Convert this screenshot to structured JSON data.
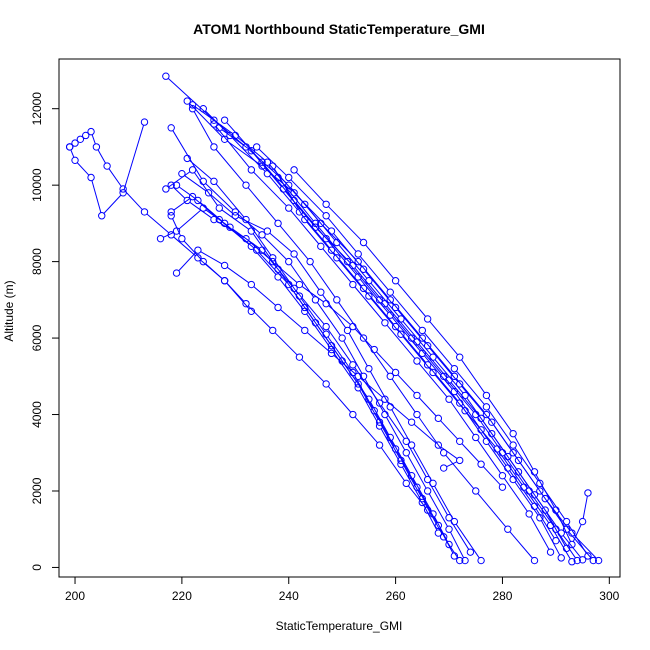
{
  "chart_data": {
    "type": "line",
    "title": "ATOM1 Northbound StaticTemperature_GMI",
    "xlabel": "StaticTemperature_GMI",
    "ylabel": "Altitude (m)",
    "xlim": [
      197,
      302
    ],
    "ylim": [
      -250,
      13300
    ],
    "x_ticks": [
      200,
      220,
      240,
      260,
      280,
      300
    ],
    "y_ticks": [
      0,
      2000,
      4000,
      6000,
      8000,
      10000,
      12000
    ],
    "grid": false,
    "legend": "none",
    "style": "lines with open circle markers",
    "color": "#0000ff",
    "series": [
      {
        "x": [
          286,
          281,
          275,
          269,
          264,
          259,
          254,
          249,
          244,
          238,
          232,
          226,
          222
        ],
        "y": [
          180,
          1000,
          2000,
          3000,
          4000,
          5000,
          6000,
          7000,
          8000,
          9000,
          10000,
          11000,
          12000
        ]
      },
      {
        "x": [
          297,
          292,
          287,
          282,
          277,
          271,
          265,
          259,
          253,
          246,
          240,
          232,
          226,
          217
        ],
        "y": [
          180,
          1000,
          2000,
          3000,
          4000,
          5000,
          6000,
          7000,
          8000,
          9000,
          10000,
          11000,
          11700,
          12850
        ]
      },
      {
        "x": [
          295,
          291,
          286,
          281,
          276,
          270,
          264,
          258,
          252,
          245,
          239,
          233,
          227
        ],
        "y": [
          200,
          900,
          1900,
          2900,
          3900,
          4900,
          5900,
          6900,
          7900,
          8900,
          9900,
          10900,
          11500
        ]
      },
      {
        "x": [
          293,
          289,
          284,
          279,
          273,
          267,
          261,
          255,
          249,
          243,
          237
        ],
        "y": [
          150,
          1100,
          2100,
          3100,
          4100,
          5100,
          6100,
          7100,
          8100,
          9100,
          10500
        ]
      },
      {
        "x": [
          298,
          293,
          288,
          283,
          278,
          272,
          266,
          260,
          254,
          248,
          241,
          235,
          228,
          221
        ],
        "y": [
          180,
          900,
          1800,
          2800,
          3800,
          4800,
          5800,
          6800,
          7800,
          8800,
          9800,
          10500,
          11200,
          12200
        ]
      },
      {
        "x": [
          296,
          292,
          287,
          282,
          277,
          271,
          265,
          259,
          253,
          247,
          240,
          234
        ],
        "y": [
          300,
          1200,
          2200,
          3200,
          4200,
          5200,
          6200,
          7200,
          8200,
          9200,
          10200,
          11000
        ]
      },
      {
        "x": [
          291,
          287,
          282,
          277,
          272,
          266,
          260,
          254,
          248,
          242,
          236,
          229,
          224
        ],
        "y": [
          250,
          1300,
          2300,
          3300,
          4300,
          5300,
          6300,
          7300,
          8300,
          9300,
          10300,
          11300,
          12000
        ]
      },
      {
        "x": [
          294,
          290,
          285,
          280,
          275,
          269,
          263,
          257,
          251,
          245,
          238
        ],
        "y": [
          180,
          1000,
          2000,
          3000,
          4000,
          5000,
          6000,
          7000,
          8000,
          9000,
          10200
        ]
      },
      {
        "x": [
          289,
          285,
          280,
          275,
          270,
          264,
          258,
          252,
          246,
          240,
          233,
          226
        ],
        "y": [
          400,
          1400,
          2400,
          3400,
          4400,
          5400,
          6400,
          7400,
          8400,
          9400,
          10400,
          11600
        ]
      },
      {
        "x": [
          296,
          295,
          293,
          290,
          286,
          282,
          277,
          272,
          266,
          260,
          254,
          247,
          241
        ],
        "y": [
          1950,
          1200,
          600,
          1500,
          2500,
          3500,
          4500,
          5500,
          6500,
          7500,
          8500,
          9500,
          10400
        ]
      },
      {
        "x": [
          292,
          288,
          283,
          278,
          273,
          267,
          261,
          255,
          249,
          243,
          236,
          230,
          222
        ],
        "y": [
          500,
          1500,
          2500,
          3500,
          4500,
          5500,
          6500,
          7500,
          8500,
          9500,
          10600,
          11300,
          12100
        ]
      },
      {
        "x": [
          290,
          286,
          281,
          276,
          271,
          265,
          259,
          253,
          247,
          241,
          235,
          228
        ],
        "y": [
          700,
          1600,
          2600,
          3600,
          4600,
          5600,
          6600,
          7600,
          8600,
          9600,
          10600,
          11700
        ]
      },
      {
        "x": [
          273,
          270,
          266,
          262,
          258,
          254,
          250,
          245,
          240,
          235,
          230,
          224,
          218
        ],
        "y": [
          180,
          1000,
          2000,
          3000,
          4000,
          5000,
          6000,
          7000,
          8000,
          8700,
          9300,
          10100,
          11500
        ]
      },
      {
        "x": [
          271,
          268,
          264,
          260,
          256,
          252,
          247,
          242,
          237,
          232,
          226,
          221
        ],
        "y": [
          300,
          1100,
          2100,
          3100,
          4100,
          5100,
          6100,
          7100,
          8100,
          9100,
          10100,
          10700
        ]
      },
      {
        "x": [
          272,
          269,
          265,
          261,
          257,
          253,
          248,
          243,
          238,
          233,
          227,
          222,
          217
        ],
        "y": [
          180,
          800,
          1800,
          2800,
          3800,
          4800,
          5800,
          6800,
          7800,
          8800,
          9400,
          10400,
          9900
        ]
      },
      {
        "x": [
          276,
          271,
          267,
          263,
          259,
          255,
          251,
          246,
          241,
          236,
          230,
          225,
          220
        ],
        "y": [
          180,
          1200,
          2200,
          3200,
          4200,
          5200,
          6200,
          7200,
          8200,
          8800,
          9200,
          9800,
          10300
        ]
      },
      {
        "x": [
          270,
          267,
          263,
          259,
          255,
          250,
          245,
          240,
          234,
          228,
          223,
          219
        ],
        "y": [
          600,
          1400,
          2400,
          3400,
          4400,
          5400,
          6400,
          7400,
          8300,
          9000,
          9600,
          10000
        ]
      },
      {
        "x": [
          274,
          270,
          266,
          262,
          257,
          252,
          247,
          241,
          235,
          229,
          224,
          219,
          216
        ],
        "y": [
          400,
          1300,
          2300,
          3300,
          4300,
          5300,
          6300,
          7300,
          8300,
          8900,
          9400,
          8800,
          8600
        ]
      },
      {
        "x": [
          268,
          265,
          261,
          257,
          253,
          248,
          243,
          238,
          233,
          227,
          222,
          218
        ],
        "y": [
          900,
          1700,
          2700,
          3700,
          4700,
          5700,
          6700,
          7600,
          8400,
          9100,
          9700,
          9300
        ]
      },
      {
        "x": [
          280,
          276,
          272,
          268,
          264,
          260,
          256,
          252,
          247,
          242,
          237,
          232,
          226,
          221,
          218
        ],
        "y": [
          2100,
          2700,
          3300,
          3900,
          4500,
          5100,
          5700,
          6300,
          6900,
          7400,
          8000,
          8600,
          9100,
          9600,
          10000
        ]
      },
      {
        "x": [
          269,
          272,
          268,
          263,
          258,
          253,
          248,
          243,
          238,
          233,
          228,
          223,
          219
        ],
        "y": [
          2600,
          2800,
          3200,
          3800,
          4400,
          5000,
          5600,
          6200,
          6800,
          7400,
          7900,
          8300,
          7700
        ]
      },
      {
        "x": [
          266,
          262,
          257,
          252,
          247,
          242,
          237,
          232,
          228,
          224,
          220,
          218
        ],
        "y": [
          1500,
          2200,
          3200,
          4000,
          4800,
          5500,
          6200,
          6900,
          7500,
          8000,
          8600,
          9200
        ]
      },
      {
        "x": [
          199,
          200,
          201,
          202,
          203,
          204,
          206,
          209,
          213,
          218,
          223,
          228,
          233
        ],
        "y": [
          11000,
          11100,
          11200,
          11300,
          11400,
          11000,
          10500,
          9900,
          9300,
          8700,
          8100,
          7500,
          6700
        ]
      },
      {
        "x": [
          199,
          200,
          203,
          205,
          209,
          213
        ],
        "y": [
          11000,
          10650,
          10200,
          9200,
          9800,
          11650
        ]
      }
    ]
  }
}
